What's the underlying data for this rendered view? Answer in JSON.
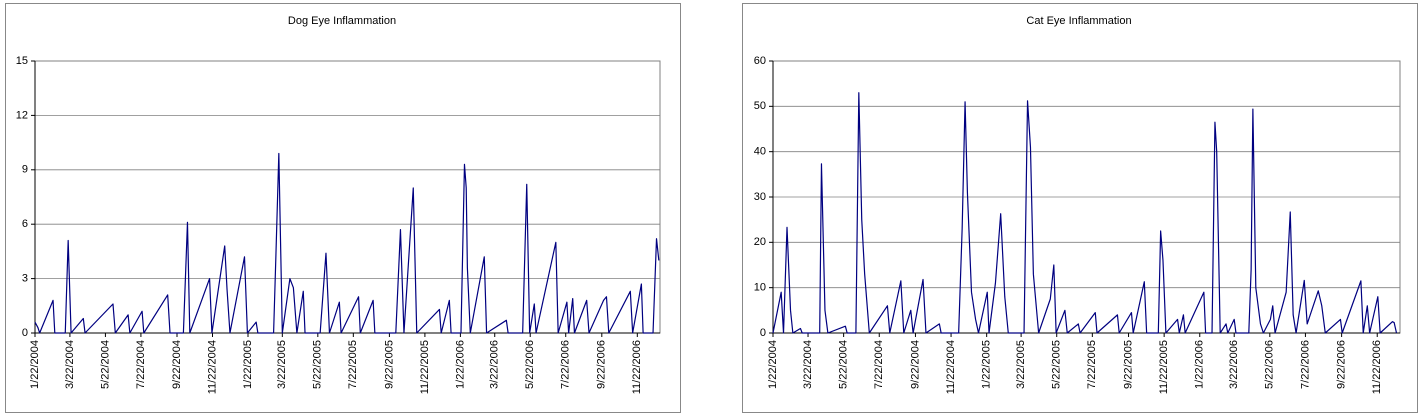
{
  "chart_data": [
    {
      "type": "line",
      "title": "Dog Eye Inflammation",
      "x": [
        "1/22/2004",
        "1/27/2004",
        "1/30/2004",
        "2/22/2004",
        "2/25/2004",
        "3/14/2004",
        "3/19/2004",
        "3/24/2004",
        "4/14/2004",
        "4/17/2004",
        "6/4/2004",
        "6/8/2004",
        "6/30/2004",
        "7/3/2004",
        "7/24/2004",
        "7/27/2004",
        "9/6/2004",
        "9/10/2004",
        "10/3/2004",
        "10/10/2004",
        "10/14/2004",
        "11/17/2004",
        "11/21/2004",
        "12/13/2004",
        "12/17/2004",
        "12/22/2004",
        "1/16/2005",
        "1/21/2005",
        "2/5/2005",
        "2/8/2005",
        "3/7/2005",
        "3/11/2005",
        "3/16/2005",
        "3/22/2005",
        "4/4/2005",
        "4/10/2005",
        "4/16/2005",
        "4/27/2005",
        "4/30/2005",
        "5/26/2005",
        "6/5/2005",
        "6/11/2005",
        "6/28/2005",
        "7/1/2005",
        "7/31/2005",
        "8/3/2005",
        "8/25/2005",
        "8/28/2005",
        "10/3/2005",
        "10/11/2005",
        "10/17/2005",
        "11/2/2005",
        "11/8/2005",
        "12/17/2005",
        "12/20/2005",
        "1/3/2006",
        "1/6/2006",
        "1/23/2006",
        "1/29/2006",
        "2/1/2006",
        "2/3/2006",
        "2/8/2006",
        "3/4/2006",
        "3/8/2006",
        "4/11/2006",
        "4/14/2006",
        "5/9/2006",
        "5/16/2006",
        "5/21/2006",
        "5/29/2006",
        "6/1/2006",
        "7/5/2006",
        "7/9/2006",
        "7/24/2006",
        "7/27/2006",
        "8/3/2006",
        "8/6/2006",
        "8/27/2006",
        "8/31/2006",
        "9/25/2006",
        "9/30/2006",
        "10/4/2006",
        "11/10/2006",
        "11/14/2006",
        "11/29/2006",
        "12/2/2006",
        "12/19/2006",
        "12/25/2006",
        "12/29/2006"
      ],
      "series": [
        {
          "color": "#000080",
          "values": [
            0.6,
            0.3,
            0,
            1.8,
            0,
            0,
            5.1,
            0,
            0.8,
            0,
            1.6,
            0,
            1.0,
            0,
            1.2,
            0,
            2.1,
            0,
            0,
            6.1,
            0,
            3.0,
            0,
            4.8,
            2.4,
            0,
            4.2,
            0,
            0.6,
            0,
            0,
            4.3,
            9.9,
            0,
            3.0,
            2.5,
            0,
            2.3,
            0,
            0,
            4.4,
            0,
            1.7,
            0,
            2.0,
            0,
            1.8,
            0,
            0,
            5.7,
            0,
            8.0,
            0,
            1.3,
            0,
            1.8,
            0,
            0,
            9.3,
            8.0,
            3.6,
            0,
            4.2,
            0,
            0.7,
            0,
            0,
            8.2,
            0,
            1.6,
            0,
            5.0,
            0,
            1.7,
            0,
            1.9,
            0,
            1.8,
            0,
            1.8,
            2.0,
            0,
            2.3,
            0,
            2.7,
            0,
            0,
            5.2,
            4.0
          ]
        }
      ],
      "xlim": [
        "1/22/2004",
        "12/31/2006"
      ],
      "xticks": [
        "1/22/2004",
        "3/22/2004",
        "5/22/2004",
        "7/22/2004",
        "9/22/2004",
        "11/22/2004",
        "1/22/2005",
        "3/22/2005",
        "5/22/2005",
        "7/22/2005",
        "9/22/2005",
        "11/22/2005",
        "1/22/2006",
        "3/22/2006",
        "5/22/2006",
        "7/22/2006",
        "9/22/2006",
        "11/22/2006"
      ],
      "ylim": [
        0,
        15
      ],
      "yticks": [
        0,
        3,
        6,
        9,
        12,
        15
      ],
      "grid": true
    },
    {
      "type": "line",
      "title": "Cat Eye Inflammation",
      "x": [
        "1/22/2004",
        "2/5/2004",
        "2/9/2004",
        "2/15/2004",
        "2/21/2004",
        "2/25/2004",
        "3/9/2004",
        "3/12/2004",
        "4/11/2004",
        "4/14/2004",
        "4/20/2004",
        "4/25/2004",
        "5/25/2004",
        "5/28/2004",
        "6/12/2004",
        "6/17/2004",
        "6/22/2004",
        "6/27/2004",
        "7/5/2004",
        "8/5/2004",
        "8/9/2004",
        "8/28/2004",
        "9/2/2004",
        "9/14/2004",
        "9/18/2004",
        "10/5/2004",
        "10/10/2004",
        "11/2/2004",
        "11/5/2004",
        "12/5/2004",
        "12/11/2004",
        "12/16/2004",
        "12/20/2004",
        "12/27/2004",
        "1/3/2005",
        "1/8/2005",
        "1/23/2005",
        "1/26/2005",
        "2/6/2005",
        "2/15/2005",
        "2/22/2005",
        "2/28/2005",
        "3/27/2005",
        "4/2/2005",
        "4/7/2005",
        "4/12/2005",
        "4/21/2005",
        "5/11/2005",
        "5/17/2005",
        "5/21/2005",
        "6/5/2005",
        "6/9/2005",
        "6/28/2005",
        "7/1/2005",
        "7/27/2005",
        "7/30/2005",
        "9/3/2005",
        "9/6/2005",
        "9/27/2005",
        "9/30/2005",
        "10/19/2005",
        "10/23/2005",
        "11/12/2005",
        "11/16/2005",
        "11/20/2005",
        "11/25/2005",
        "12/15/2005",
        "12/18/2005",
        "12/25/2005",
        "12/28/2005",
        "1/29/2006",
        "2/1/2006",
        "2/12/2006",
        "2/17/2006",
        "2/20/2006",
        "2/26/2006",
        "3/8/2006",
        "3/11/2006",
        "3/22/2006",
        "3/25/2006",
        "4/16/2006",
        "4/20/2006",
        "4/23/2006",
        "4/28/2006",
        "5/6/2006",
        "5/11/2006",
        "5/23/2006",
        "5/27/2006",
        "5/31/2006",
        "6/19/2006",
        "6/26/2006",
        "7/1/2006",
        "7/6/2006",
        "7/20/2006",
        "7/25/2006",
        "8/13/2006",
        "8/19/2006",
        "8/25/2006",
        "9/20/2006",
        "9/23/2006",
        "10/25/2006",
        "10/29/2006",
        "11/5/2006",
        "11/9/2006",
        "11/23/2006",
        "11/27/2006",
        "12/18/2006",
        "12/21/2006",
        "12/25/2006"
      ],
      "series": [
        {
          "color": "#000080",
          "values": [
            0,
            9,
            0,
            23.3,
            5,
            0,
            1,
            0,
            0,
            37.3,
            5,
            0,
            1.5,
            0,
            0,
            53,
            25,
            13,
            0,
            6,
            0,
            11.5,
            0,
            5,
            0,
            11.8,
            0,
            2,
            0,
            0,
            23,
            51,
            31,
            9,
            3,
            0,
            9,
            0,
            11,
            26.3,
            8,
            0,
            0,
            51.2,
            41,
            13,
            0,
            7.5,
            15,
            0,
            5,
            0,
            2,
            0,
            4.5,
            0,
            4,
            0,
            4.5,
            0,
            11.3,
            0,
            0,
            22.5,
            16,
            0,
            3,
            0,
            4,
            0,
            9,
            0,
            0,
            46.5,
            40,
            0,
            2,
            0,
            3,
            0,
            0,
            14,
            49.4,
            10,
            2,
            0,
            3,
            6,
            0,
            9,
            26.7,
            4,
            0,
            11.6,
            2,
            9.3,
            6,
            0,
            3,
            0,
            11.5,
            0,
            6,
            0,
            8,
            0,
            2.5,
            2.3,
            0
          ]
        }
      ],
      "xlim": [
        "1/22/2004",
        "12/31/2006"
      ],
      "xticks": [
        "1/22/2004",
        "3/22/2004",
        "5/22/2004",
        "7/22/2004",
        "9/22/2004",
        "11/22/2004",
        "1/22/2005",
        "3/22/2005",
        "5/22/2005",
        "7/22/2005",
        "9/22/2005",
        "11/22/2005",
        "1/22/2006",
        "3/22/2006",
        "5/22/2006",
        "7/22/2006",
        "9/22/2006",
        "11/22/2006"
      ],
      "ylim": [
        0,
        60
      ],
      "yticks": [
        0,
        10,
        20,
        30,
        40,
        50,
        60
      ],
      "grid": true
    }
  ]
}
